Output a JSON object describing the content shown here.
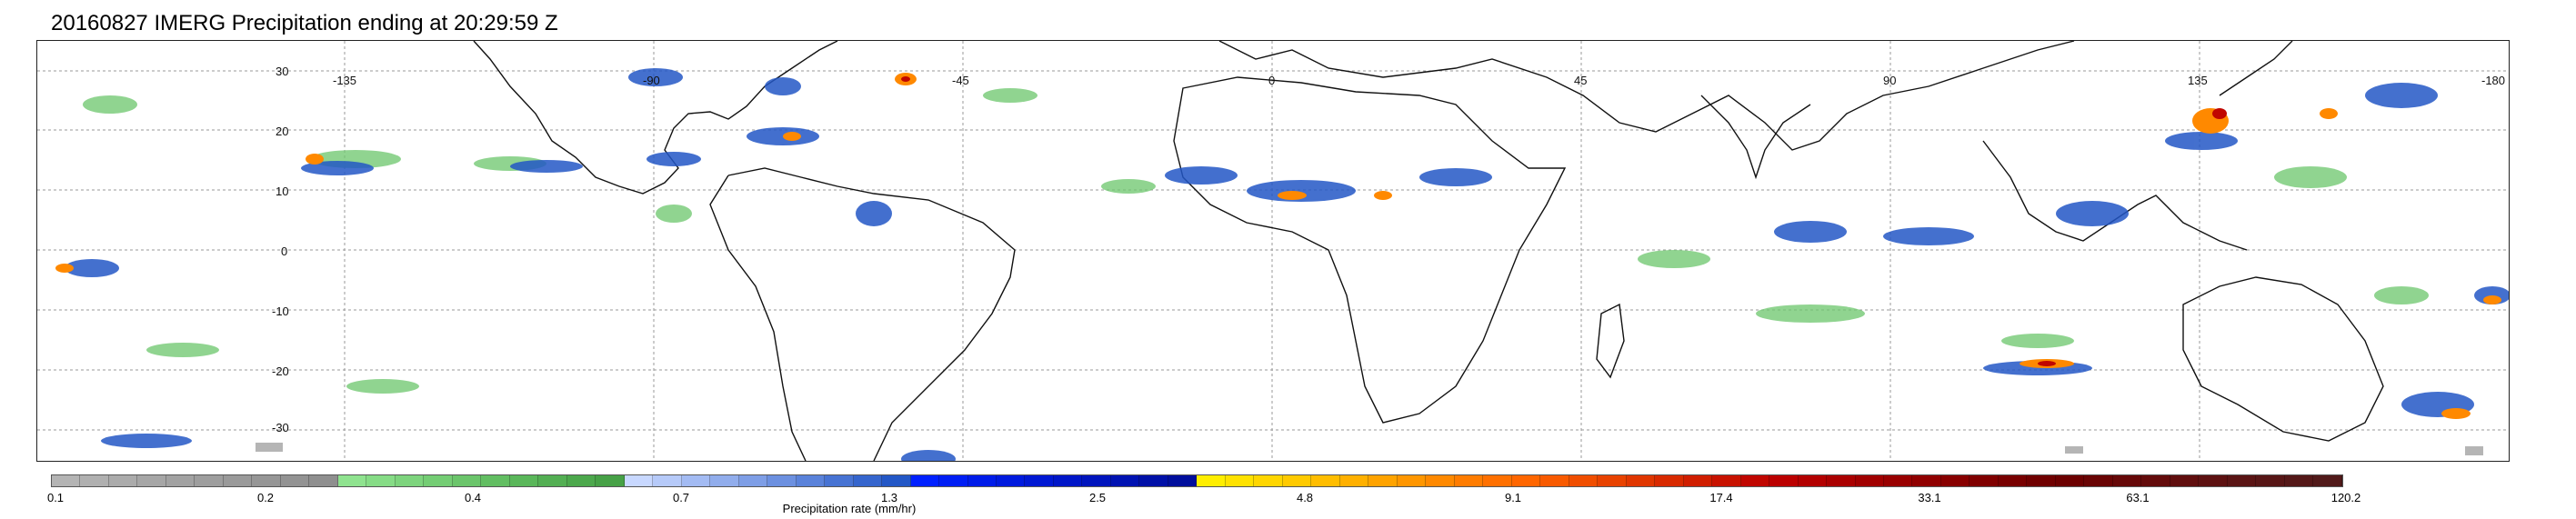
{
  "title": "20160827 IMERG Precipitation ending at 20:29:59 Z",
  "map": {
    "lat_labels": [
      "30",
      "20",
      "10",
      "0",
      "-10",
      "-20",
      "-30"
    ],
    "lon_labels": [
      "-135",
      "-90",
      "-45",
      "0",
      "45",
      "90",
      "135",
      "-180"
    ]
  },
  "colorbar": {
    "caption": "Precipitation rate (mm/hr)",
    "tick_labels": [
      "0.1",
      "0.2",
      "0.4",
      "0.7",
      "1.3",
      "2.5",
      "4.8",
      "9.1",
      "17.4",
      "33.1",
      "63.1",
      "120.2"
    ],
    "colors": [
      "#b4b4b4",
      "#b0b0b0",
      "#ababab",
      "#a6a6a6",
      "#a2a2a2",
      "#9e9e9e",
      "#9a9a9a",
      "#969696",
      "#939393",
      "#8f8f8f",
      "#8fe38f",
      "#86dc86",
      "#7dd47d",
      "#74cd74",
      "#6bc56b",
      "#62be62",
      "#5ab75a",
      "#53af53",
      "#4ca84c",
      "#46a146",
      "#c8d8ff",
      "#b6caf9",
      "#a3bbf3",
      "#91adec",
      "#7e9ee6",
      "#6c90e0",
      "#5a82da",
      "#4773d3",
      "#3565cd",
      "#2357c6",
      "#0020ff",
      "#001ef4",
      "#001ce9",
      "#001ade",
      "#0018d3",
      "#0016c8",
      "#0014bd",
      "#0012b2",
      "#0010a7",
      "#000e9c",
      "#ffee00",
      "#ffe200",
      "#ffd600",
      "#ffca00",
      "#ffbd00",
      "#ffb000",
      "#ffa300",
      "#ff9600",
      "#ff8900",
      "#ff7c00",
      "#ff7000",
      "#ff6600",
      "#f85a00",
      "#f04e00",
      "#e84200",
      "#e03600",
      "#d82a00",
      "#d01e00",
      "#c81200",
      "#c00600",
      "#bb0000",
      "#b30000",
      "#aa0000",
      "#a10000",
      "#990000",
      "#900000",
      "#880000",
      "#800000",
      "#780000",
      "#700000",
      "#6c0000",
      "#690404",
      "#660808",
      "#630b0b",
      "#600e0e",
      "#5d1111",
      "#5a1414",
      "#571616",
      "#541818",
      "#511a1a"
    ]
  }
}
